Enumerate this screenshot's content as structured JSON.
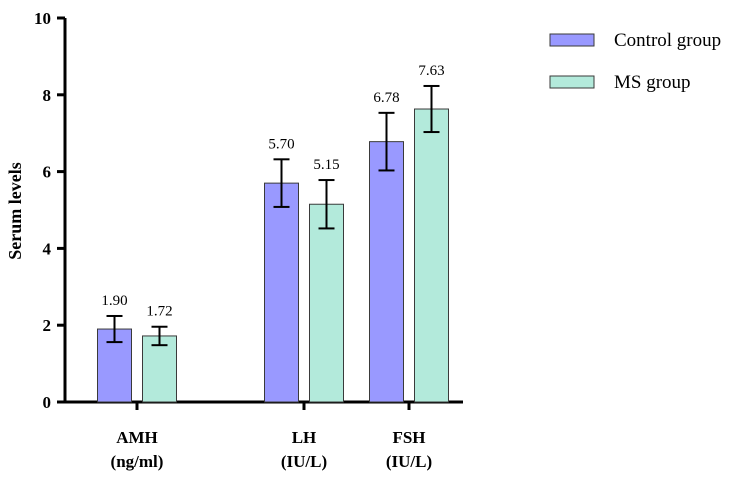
{
  "chart_data": {
    "type": "bar",
    "title": "",
    "xlabel": "",
    "ylabel": "Serum levels",
    "ylim": [
      0,
      10
    ],
    "yticks": [
      0,
      2,
      4,
      6,
      8,
      10
    ],
    "grid": false,
    "legend_position": "top-right",
    "categories": [
      [
        "AMH",
        "(ng/ml)"
      ],
      [
        "LH",
        "(IU/L)"
      ],
      [
        "FSH",
        "(IU/L)"
      ]
    ],
    "series": [
      {
        "name": "Control group",
        "color": "#9999ff",
        "values": [
          1.9,
          5.7,
          6.78
        ],
        "value_labels": [
          "1.90",
          "5.70",
          "6.78"
        ],
        "error": [
          0.34,
          0.62,
          0.75
        ]
      },
      {
        "name": "MS group",
        "color": "#b3eadb",
        "values": [
          1.72,
          5.15,
          7.63
        ],
        "value_labels": [
          "1.72",
          "5.15",
          "7.63"
        ],
        "error": [
          0.24,
          0.63,
          0.6
        ]
      }
    ]
  }
}
